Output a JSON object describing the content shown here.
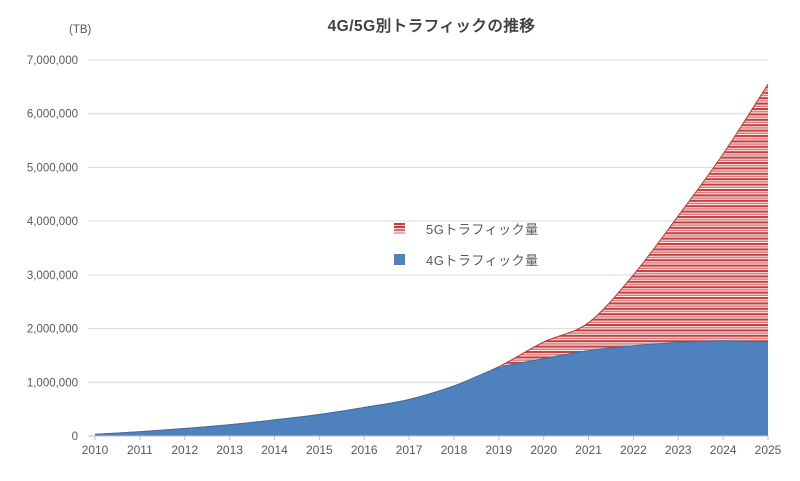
{
  "chart": {
    "title": "4G/5G別トラフィックの推移",
    "unit_label": "(TB)",
    "colors": {
      "area_4g": "#4E81BD",
      "area_4g_edge": "#3A6EA5",
      "stripe_dark_red": "#C43F3F",
      "stripe_mid_red": "#DA6F6F",
      "stripe_light_pink": "#F3D8D8",
      "stripe_pale": "#FBF0F0",
      "red_edge": "#BE3535",
      "gridline": "#D9D9D9",
      "axis_line": "#BFBFBF",
      "label_text": "#595959",
      "title_text": "#404040"
    },
    "legend": [
      {
        "label": "5Gトラフィック量",
        "swatch": "red-striped-square"
      },
      {
        "label": "4Gトラフィック量",
        "swatch": "blue-solid-square"
      }
    ],
    "y_tick_labels": [
      "0",
      "1,000,000",
      "2,000,000",
      "3,000,000",
      "4,000,000",
      "5,000,000",
      "6,000,000",
      "7,000,000"
    ]
  },
  "chart_data": {
    "type": "area",
    "stacked": true,
    "title": "4G/5G別トラフィックの推移",
    "xlabel": "",
    "ylabel": "(TB)",
    "x": [
      2010,
      2011,
      2012,
      2013,
      2014,
      2015,
      2016,
      2017,
      2018,
      2019,
      2020,
      2021,
      2022,
      2023,
      2024,
      2025
    ],
    "series": [
      {
        "name": "5Gトラフィック量",
        "values": [
          0,
          0,
          0,
          0,
          0,
          0,
          0,
          0,
          0,
          20000,
          310000,
          520000,
          1320000,
          2360000,
          3480000,
          4800000
        ]
      },
      {
        "name": "4Gトラフィック量",
        "values": [
          30000,
          80000,
          140000,
          210000,
          300000,
          400000,
          530000,
          680000,
          930000,
          1270000,
          1440000,
          1590000,
          1680000,
          1740000,
          1770000,
          1750000
        ]
      }
    ],
    "ylim": [
      0,
      7000000
    ],
    "yticks": [
      0,
      1000000,
      2000000,
      3000000,
      4000000,
      5000000,
      6000000,
      7000000
    ],
    "grid": true,
    "legend_position": "center"
  }
}
